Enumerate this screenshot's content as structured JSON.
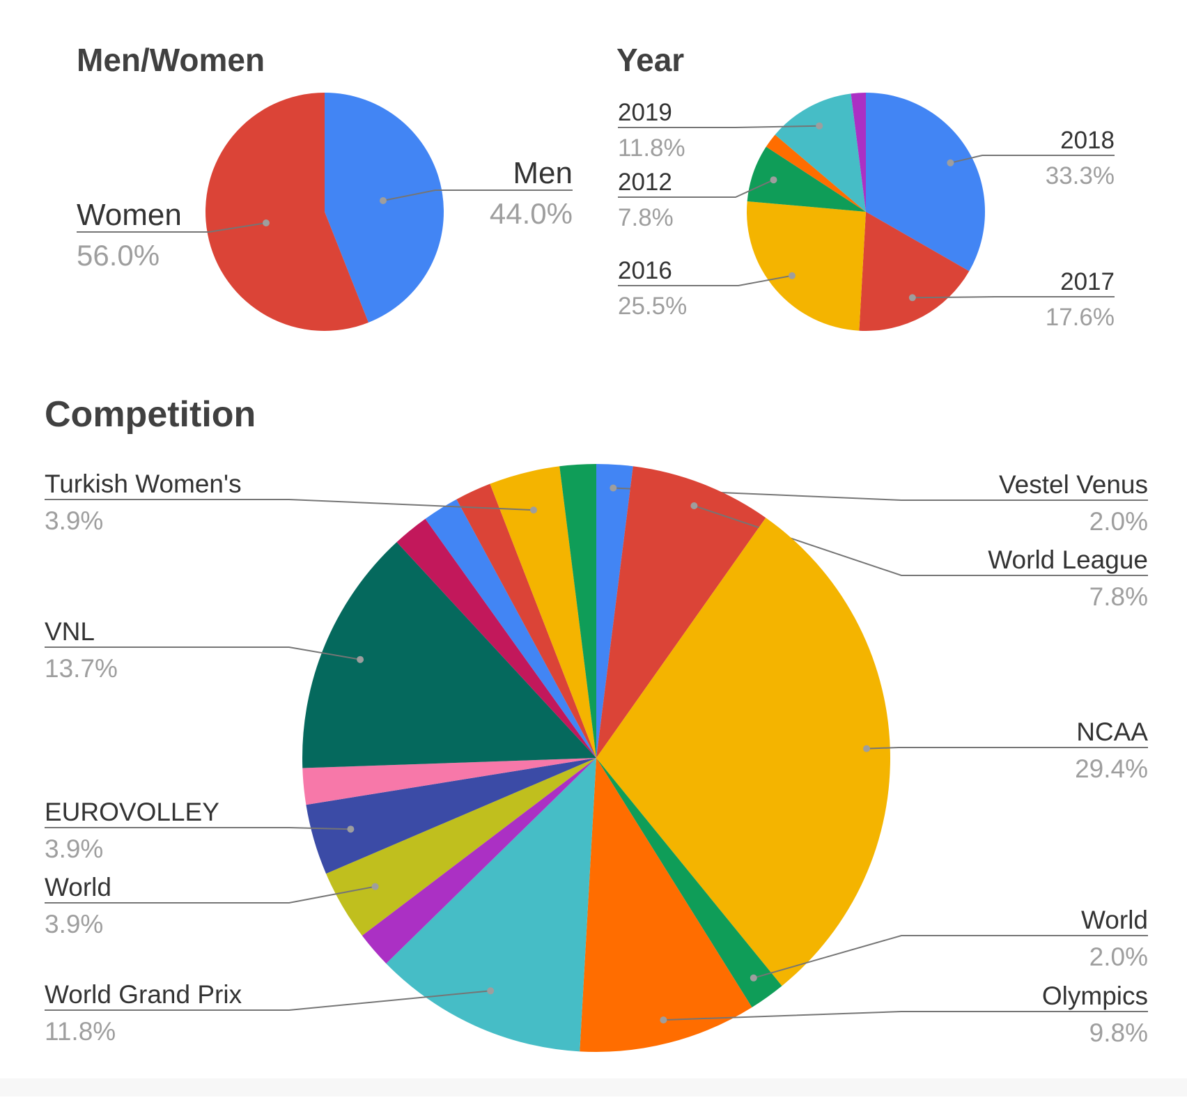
{
  "chart_data": [
    {
      "type": "pie",
      "title": "Men/Women",
      "slices": [
        {
          "label": "Men",
          "value": 44.0,
          "display": "44.0%",
          "color": "#4285f4"
        },
        {
          "label": "Women",
          "value": 56.0,
          "display": "56.0%",
          "color": "#db4437"
        }
      ]
    },
    {
      "type": "pie",
      "title": "Year",
      "slices": [
        {
          "label": "2018",
          "value": 33.3,
          "display": "33.3%",
          "color": "#4285f4"
        },
        {
          "label": "2017",
          "value": 17.6,
          "display": "17.6%",
          "color": "#db4437"
        },
        {
          "label": "2016",
          "value": 25.5,
          "display": "25.5%",
          "color": "#f4b400"
        },
        {
          "label": "2012",
          "value": 7.8,
          "display": "7.8%",
          "color": "#0f9d58"
        },
        {
          "label": "",
          "value": 2.0,
          "display": "",
          "color": "#ff6d00"
        },
        {
          "label": "2019",
          "value": 11.8,
          "display": "11.8%",
          "color": "#46bdc6"
        },
        {
          "label": "",
          "value": 2.0,
          "display": "",
          "color": "#ab30c4"
        }
      ]
    },
    {
      "type": "pie",
      "title": "Competition",
      "slices": [
        {
          "label": "Vestel Venus",
          "value": 2.0,
          "display": "2.0%",
          "color": "#4285f4"
        },
        {
          "label": "World League",
          "value": 7.8,
          "display": "7.8%",
          "color": "#db4437"
        },
        {
          "label": "NCAA",
          "value": 29.4,
          "display": "29.4%",
          "color": "#f4b400"
        },
        {
          "label": "World",
          "value": 2.0,
          "display": "2.0%",
          "color": "#0f9d58"
        },
        {
          "label": "Olympics",
          "value": 9.8,
          "display": "9.8%",
          "color": "#ff6d00"
        },
        {
          "label": "World Grand Prix",
          "value": 11.8,
          "display": "11.8%",
          "color": "#46bdc6"
        },
        {
          "label": "",
          "value": 2.0,
          "display": "",
          "color": "#ab30c4"
        },
        {
          "label": "World",
          "value": 3.9,
          "display": "3.9%",
          "color": "#c0bf1e"
        },
        {
          "label": "EUROVOLLEY",
          "value": 3.9,
          "display": "3.9%",
          "color": "#3b4ba6"
        },
        {
          "label": "",
          "value": 2.0,
          "display": "",
          "color": "#f778a9"
        },
        {
          "label": "VNL",
          "value": 13.7,
          "display": "13.7%",
          "color": "#05695d"
        },
        {
          "label": "",
          "value": 2.0,
          "display": "",
          "color": "#c2185b"
        },
        {
          "label": "",
          "value": 2.0,
          "display": "",
          "color": "#4285f4"
        },
        {
          "label": "",
          "value": 2.0,
          "display": "",
          "color": "#db4437"
        },
        {
          "label": "Turkish Women's",
          "value": 3.9,
          "display": "3.9%",
          "color": "#f4b400"
        },
        {
          "label": "",
          "value": 2.0,
          "display": "",
          "color": "#0f9d58"
        }
      ]
    }
  ]
}
